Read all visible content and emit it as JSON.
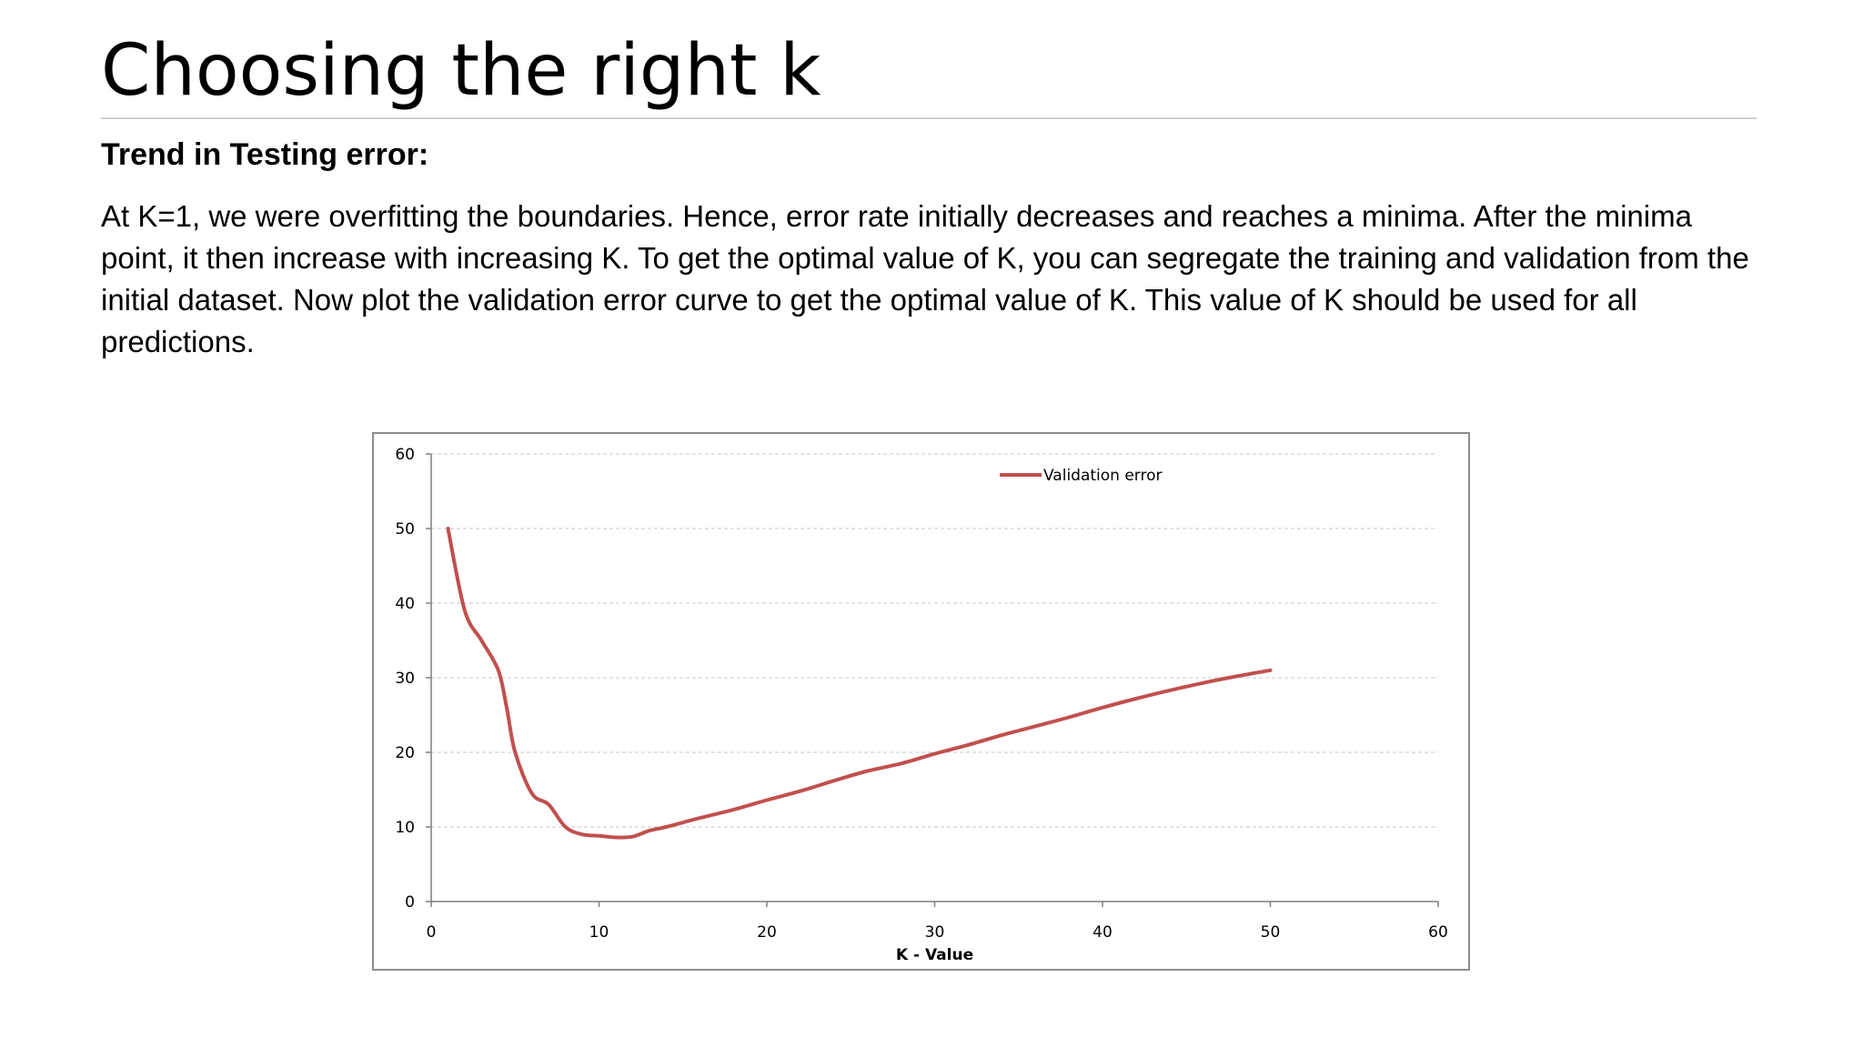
{
  "slide": {
    "title": "Choosing the right k",
    "subheading": "Trend in Testing error:",
    "body": "At K=1, we were overfitting the boundaries. Hence, error rate initially decreases and reaches a minima. After the minima point, it then increase with increasing K. To get the optimal value of K, you can segregate the training and validation from the initial dataset. Now plot the validation error curve to get the optimal value of K. This value of K should be used for all predictions."
  },
  "chart_data": {
    "type": "line",
    "xlabel": "K - Value",
    "ylabel": "",
    "xlim": [
      0,
      60
    ],
    "ylim": [
      0,
      60
    ],
    "xticks": [
      0,
      10,
      20,
      30,
      40,
      50,
      60
    ],
    "yticks": [
      0,
      10,
      20,
      30,
      40,
      50,
      60
    ],
    "grid": "horizontal-dashed",
    "legend_position": "top-center",
    "series": [
      {
        "name": "Validation error",
        "color": "#c0504d",
        "x": [
          1,
          2,
          3,
          4,
          4.5,
          5,
          6,
          7,
          8,
          9,
          10,
          11,
          12,
          13,
          14,
          16,
          18,
          20,
          22,
          24,
          26,
          28,
          30,
          32,
          34,
          36,
          38,
          40,
          42,
          44,
          46,
          48,
          50
        ],
        "y": [
          50,
          39,
          35,
          31,
          26,
          20,
          14.5,
          13,
          10,
          9,
          8.8,
          8.6,
          8.7,
          9.5,
          10,
          11.2,
          12.3,
          13.6,
          14.8,
          16.2,
          17.5,
          18.5,
          19.8,
          21,
          22.3,
          23.5,
          24.7,
          26,
          27.2,
          28.3,
          29.3,
          30.2,
          31
        ]
      }
    ]
  }
}
